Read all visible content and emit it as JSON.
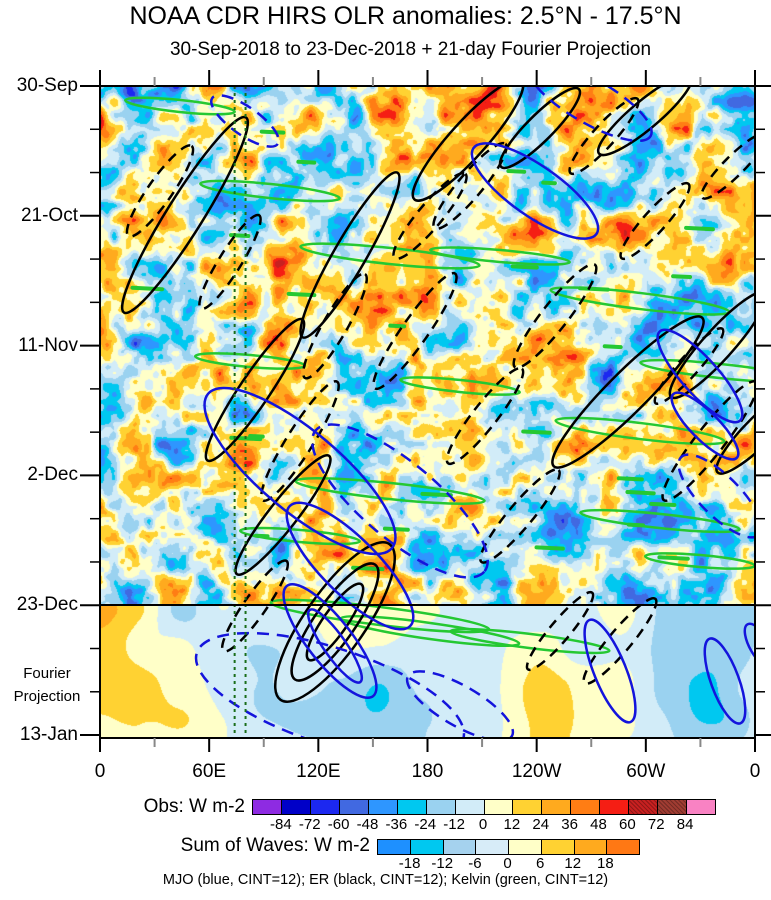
{
  "title": "NOAA CDR HIRS OLR anomalies: 2.5°N - 17.5°N",
  "subtitle": "30-Sep-2018 to 23-Dec-2018 + 21-day Fourier Projection",
  "footer_note": "MJO (blue, CINT=12); ER (black, CINT=12); Kelvin (green, CINT=12)",
  "fourier_label": {
    "line1": "Fourier",
    "line2": "Projection"
  },
  "chart_data": {
    "type": "heatmap",
    "title": "NOAA CDR HIRS OLR anomalies: 2.5°N - 17.5°N",
    "subtitle": "30-Sep-2018 to 23-Dec-2018 + 21-day Fourier Projection",
    "x_axis": {
      "ticks": [
        "0",
        "60E",
        "120E",
        "180",
        "120W",
        "60W",
        "0"
      ],
      "domain_degrees": [
        0,
        360
      ],
      "minor_tick_every_degrees": 30
    },
    "y_axis": {
      "ticks": [
        "30-Sep",
        "21-Oct",
        "11-Nov",
        "2-Dec",
        "23-Dec",
        "13-Jan"
      ],
      "start_date": "30-Sep-2018",
      "end_date": "13-Jan-2019",
      "major_tick_interval_days": 21,
      "minor_tick_interval_days": 7,
      "time_increases": "downward"
    },
    "obs_colorbar": {
      "label": "Obs: W m-2",
      "tick_values": [
        -84,
        -72,
        -60,
        -48,
        -36,
        -24,
        -12,
        0,
        12,
        24,
        36,
        48,
        60,
        72,
        84
      ],
      "colors": [
        "#8E2BE2",
        "#0000C8",
        "#1C28F0",
        "#4169E1",
        "#2E96FF",
        "#00C8F0",
        "#9AD2F0",
        "#D2ECF8",
        "#FFFFC8",
        "#FFD232",
        "#FFAA1E",
        "#FF7D14",
        "#F51E14",
        "#C82020",
        "#A03C32",
        "#F982C3"
      ],
      "hatched_cell_indices": [
        13,
        14
      ]
    },
    "waves_colorbar": {
      "label": "Sum of Waves: W m-2",
      "tick_values": [
        -18,
        -12,
        -6,
        0,
        6,
        12,
        18
      ],
      "colors": [
        "#1E90FF",
        "#00C8F0",
        "#A5D2EE",
        "#D7ECF8",
        "#FFFFC8",
        "#FFD232",
        "#FFAA1E",
        "#FF7814"
      ]
    },
    "contour_sets": [
      {
        "name": "MJO",
        "color": "#1414DC",
        "cint_w_m2": 12
      },
      {
        "name": "ER",
        "color": "#000000",
        "cint_w_m2": 12
      },
      {
        "name": "Kelvin",
        "color": "#25C832",
        "cint_w_m2": 12
      }
    ],
    "annotation": "MJO (blue, CINT=12); ER (black, CINT=12); Kelvin (green, CINT=12)",
    "projection_separator": {
      "at_date": "23-Dec",
      "label_lines": [
        "Fourier",
        "Projection"
      ],
      "projection_length_days": 21
    },
    "reference_longitude_dashed_lines_deg": [
      74,
      80
    ],
    "reference_line_color": "#1A6E1A",
    "units": "W m-2"
  }
}
